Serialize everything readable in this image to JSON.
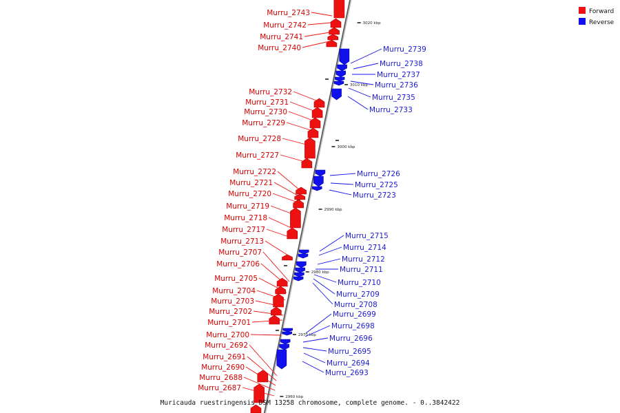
{
  "caption": "Muricauda ruestringensis DSM 13258 chromosome, complete genome. - 0..3842422",
  "legend": [
    {
      "label": "Forward",
      "color": "#ee1111"
    },
    {
      "label": "Reverse",
      "color": "#1111ee"
    }
  ],
  "scale_labels": [
    "3020 kbp",
    "3010 kbp",
    "3000 kbp",
    "2990 kbp",
    "2980 kbp",
    "2970 kbp",
    "2960 kbp"
  ],
  "forward_genes": [
    "Murru_2743",
    "Murru_2742",
    "Murru_2741",
    "Murru_2740",
    "Murru_2732",
    "Murru_2731",
    "Murru_2730",
    "Murru_2729",
    "Murru_2728",
    "Murru_2727",
    "Murru_2722",
    "Murru_2721",
    "Murru_2720",
    "Murru_2719",
    "Murru_2718",
    "Murru_2717",
    "Murru_2713",
    "Murru_2707",
    "Murru_2706",
    "Murru_2705",
    "Murru_2704",
    "Murru_2703",
    "Murru_2702",
    "Murru_2701",
    "Murru_2700",
    "Murru_2692",
    "Murru_2691",
    "Murru_2690",
    "Murru_2688",
    "Murru_2687"
  ],
  "reverse_genes": [
    "Murru_2739",
    "Murru_2738",
    "Murru_2737",
    "Murru_2736",
    "Murru_2735",
    "Murru_2733",
    "Murru_2726",
    "Murru_2725",
    "Murru_2723",
    "Murru_2715",
    "Murru_2714",
    "Murru_2712",
    "Murru_2711",
    "Murru_2710",
    "Murru_2709",
    "Murru_2708",
    "Murru_2699",
    "Murru_2698",
    "Murru_2696",
    "Murru_2695",
    "Murru_2694",
    "Murru_2693"
  ]
}
